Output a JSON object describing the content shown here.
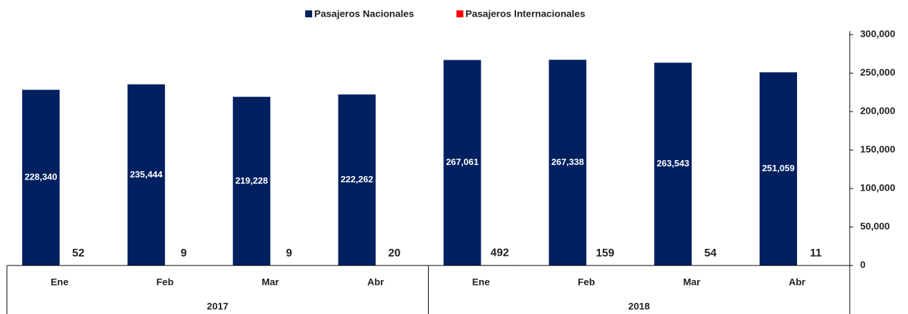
{
  "chart_data": {
    "type": "bar",
    "categories": [
      "Ene",
      "Feb",
      "Mar",
      "Abr",
      "Ene",
      "Feb",
      "Mar",
      "Abr"
    ],
    "category_groups": [
      "2017",
      "2018"
    ],
    "series": [
      {
        "name": "Pasajeros Nacionales",
        "color": "#002060",
        "values": [
          228340,
          235444,
          219228,
          222262,
          267061,
          267338,
          263543,
          251059
        ],
        "value_labels": [
          "228,340",
          "235,444",
          "219,228",
          "222,262",
          "267,061",
          "267,338",
          "263,543",
          "251,059"
        ]
      },
      {
        "name": "Pasajeros Internacionales",
        "color": "#ff0000",
        "values": [
          52,
          9,
          9,
          20,
          492,
          159,
          54,
          11
        ]
      }
    ],
    "ylim": [
      0,
      300000
    ],
    "yticks": [
      0,
      {
        "value": 50000,
        "label": "50,000"
      },
      {
        "value": 100000,
        "label": "100,000"
      },
      {
        "value": 150000,
        "label": "150,000"
      },
      {
        "value": 200000,
        "label": "200,000"
      },
      {
        "value": 250000,
        "label": "250,000"
      },
      {
        "value": 300000,
        "label": "300,000"
      }
    ],
    "legend": "top"
  }
}
